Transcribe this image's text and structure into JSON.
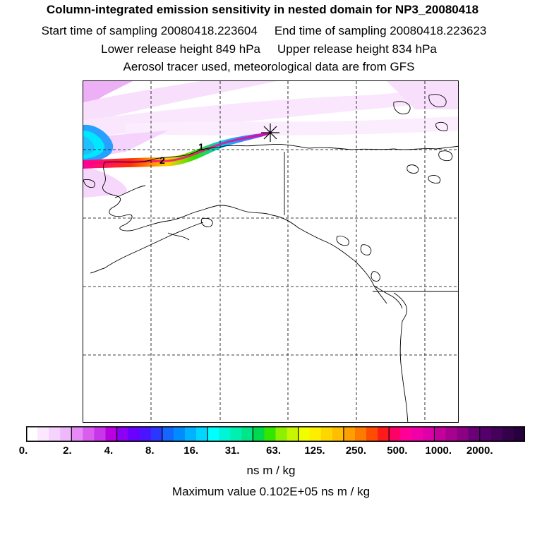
{
  "header": {
    "title": "Column-integrated emission sensitivity in nested domain for NP3_20080418",
    "start_time": "Start time of sampling 20080418.223604",
    "end_time": "End time of sampling 20080418.223623",
    "lower_release": "Lower release height  849 hPa",
    "upper_release": "Upper release height  834 hPa",
    "tracer_note": "Aerosol tracer used, meteorological data are from GFS"
  },
  "map": {
    "labels": [
      "1",
      "2"
    ],
    "release_marker": "star",
    "grid": "dashed"
  },
  "colorbar": {
    "tick_labels": [
      "0.",
      "2.",
      "4.",
      "8.",
      "16.",
      "31.",
      "63.",
      "125.",
      "250.",
      "500.",
      "1000.",
      "2000."
    ],
    "colors": [
      [
        "#ffffff",
        "#fbe8ff",
        "#f6d2fe",
        "#efb8fc"
      ],
      [
        "#e68bf5",
        "#d95ef0",
        "#c935e8",
        "#b800e0"
      ],
      [
        "#8c00f5",
        "#6a00ff",
        "#4a14ff",
        "#2b36ff"
      ],
      [
        "#1466ff",
        "#008cff",
        "#00b2ff",
        "#00d6ff"
      ],
      [
        "#00ffff",
        "#00f5d6",
        "#00f0b0",
        "#00e58a"
      ],
      [
        "#00d94c",
        "#33e600",
        "#8cf000",
        "#c8f500"
      ],
      [
        "#f0ff00",
        "#ffee00",
        "#ffd700",
        "#ffbf00"
      ],
      [
        "#ff9f00",
        "#ff7a00",
        "#ff4c00",
        "#ff1a1a"
      ],
      [
        "#ff0066",
        "#ff0099",
        "#f000a8",
        "#dd00a8"
      ],
      [
        "#c4009a",
        "#a80090",
        "#8c0084",
        "#6a0078"
      ],
      [
        "#55006a",
        "#44005a",
        "#33004a",
        "#26003c"
      ]
    ],
    "units": "ns m / kg",
    "max_value": "Maximum value  0.102E+05 ns m / kg"
  }
}
